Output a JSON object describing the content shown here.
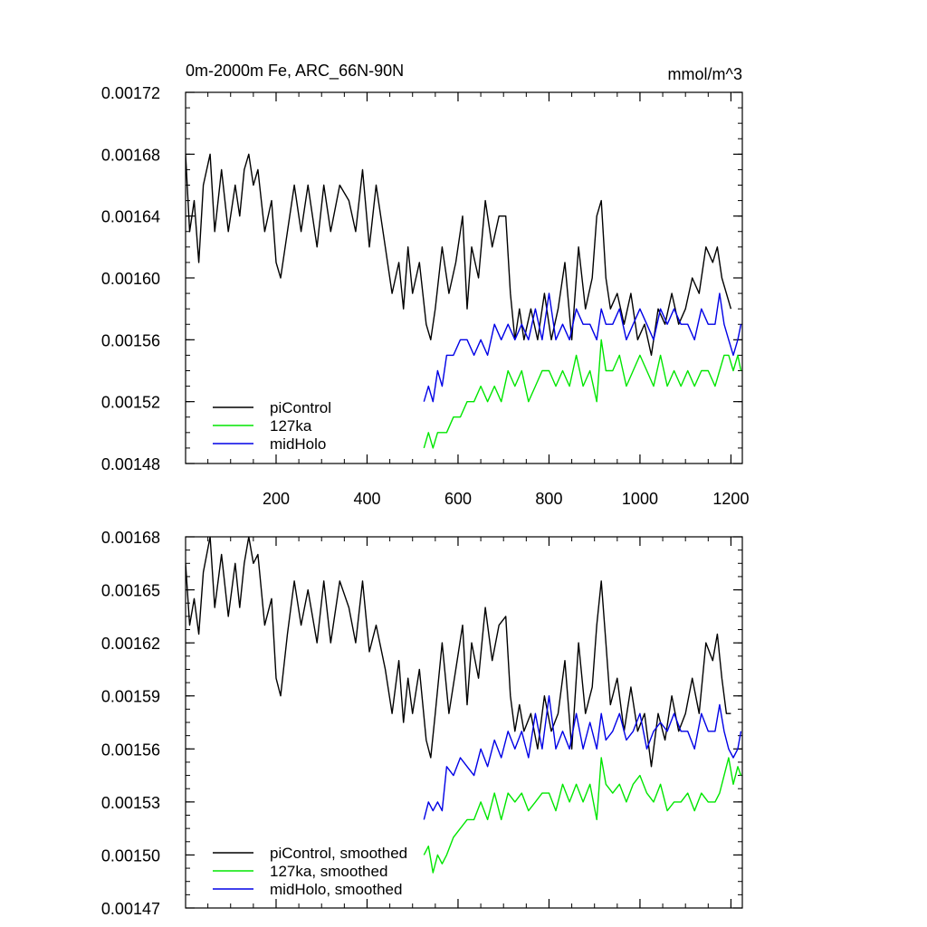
{
  "chart_data": [
    {
      "type": "line",
      "title": "0m-2000m Fe, ARC_66N-90N",
      "units": "mmol/m^3",
      "xlabel": "",
      "ylabel": "",
      "xlim": [
        1,
        1225
      ],
      "ylim": [
        0.00148,
        0.00172
      ],
      "x_ticks": [
        200,
        400,
        600,
        800,
        1000,
        1200
      ],
      "x_tick_labels": [
        "200",
        "400",
        "600",
        "800",
        "1000",
        "1200"
      ],
      "y_ticks": [
        0.00148,
        0.00152,
        0.00156,
        0.0016,
        0.00164,
        0.00168,
        0.00172
      ],
      "y_tick_labels": [
        "0.00148",
        "0.00152",
        "0.00156",
        "0.00160",
        "0.00164",
        "0.00168",
        "0.00172"
      ],
      "legend_position": "bottom-left",
      "series": [
        {
          "name": "piControl",
          "color": "#000000",
          "x": [
            1,
            10,
            20,
            30,
            40,
            55,
            65,
            80,
            95,
            110,
            120,
            130,
            140,
            150,
            160,
            175,
            190,
            200,
            210,
            225,
            240,
            255,
            270,
            290,
            305,
            320,
            340,
            360,
            375,
            390,
            405,
            420,
            440,
            455,
            470,
            480,
            490,
            500,
            515,
            530,
            540,
            550,
            565,
            580,
            595,
            610,
            620,
            630,
            645,
            660,
            675,
            690,
            705,
            715,
            725,
            735,
            745,
            760,
            775,
            790,
            805,
            820,
            835,
            850,
            865,
            880,
            895,
            905,
            915,
            925,
            935,
            950,
            965,
            980,
            995,
            1010,
            1025,
            1040,
            1055,
            1070,
            1085,
            1100,
            1115,
            1130,
            1145,
            1160,
            1170,
            1180,
            1190,
            1200
          ],
          "values": [
            0.00168,
            0.00163,
            0.00165,
            0.00161,
            0.00166,
            0.00168,
            0.00163,
            0.00167,
            0.00163,
            0.00166,
            0.00164,
            0.00167,
            0.00168,
            0.00166,
            0.00167,
            0.00163,
            0.00165,
            0.00161,
            0.0016,
            0.00163,
            0.00166,
            0.00163,
            0.00166,
            0.00162,
            0.00166,
            0.00163,
            0.00166,
            0.00165,
            0.00163,
            0.00167,
            0.00162,
            0.00166,
            0.00162,
            0.00159,
            0.00161,
            0.00158,
            0.00162,
            0.00159,
            0.00161,
            0.00157,
            0.00156,
            0.00158,
            0.00162,
            0.00159,
            0.00161,
            0.00164,
            0.00158,
            0.00162,
            0.0016,
            0.00165,
            0.00162,
            0.00164,
            0.00164,
            0.00159,
            0.00156,
            0.00158,
            0.00156,
            0.00158,
            0.00156,
            0.00159,
            0.00156,
            0.00158,
            0.00161,
            0.00156,
            0.00162,
            0.00158,
            0.0016,
            0.00164,
            0.00165,
            0.0016,
            0.00158,
            0.00159,
            0.00157,
            0.00159,
            0.00156,
            0.00157,
            0.00155,
            0.00158,
            0.00157,
            0.00159,
            0.00157,
            0.00158,
            0.0016,
            0.00159,
            0.00162,
            0.00161,
            0.00162,
            0.0016,
            0.00159,
            0.00158
          ]
        },
        {
          "name": "127ka",
          "color": "#00e600",
          "x": [
            525,
            535,
            545,
            555,
            565,
            575,
            590,
            605,
            620,
            635,
            650,
            665,
            680,
            695,
            710,
            725,
            740,
            755,
            770,
            785,
            800,
            815,
            830,
            845,
            860,
            875,
            890,
            905,
            915,
            925,
            940,
            955,
            970,
            985,
            1000,
            1015,
            1030,
            1045,
            1060,
            1075,
            1090,
            1105,
            1120,
            1135,
            1150,
            1165,
            1175,
            1185,
            1195,
            1205,
            1215,
            1222
          ],
          "values": [
            0.00149,
            0.0015,
            0.00149,
            0.0015,
            0.0015,
            0.0015,
            0.00151,
            0.00151,
            0.00152,
            0.00152,
            0.00153,
            0.00152,
            0.00153,
            0.00152,
            0.00154,
            0.00153,
            0.00154,
            0.00152,
            0.00153,
            0.00154,
            0.00154,
            0.00153,
            0.00154,
            0.00153,
            0.00155,
            0.00153,
            0.00154,
            0.00152,
            0.00156,
            0.00154,
            0.00154,
            0.00155,
            0.00153,
            0.00154,
            0.00155,
            0.00154,
            0.00153,
            0.00155,
            0.00153,
            0.00154,
            0.00153,
            0.00154,
            0.00153,
            0.00154,
            0.00154,
            0.00153,
            0.00154,
            0.00155,
            0.00155,
            0.00154,
            0.00155,
            0.00154
          ]
        },
        {
          "name": "midHolo",
          "color": "#0000e6",
          "x": [
            525,
            535,
            545,
            555,
            565,
            575,
            590,
            605,
            620,
            635,
            650,
            665,
            680,
            695,
            710,
            725,
            740,
            755,
            770,
            785,
            800,
            815,
            830,
            845,
            860,
            875,
            890,
            905,
            915,
            925,
            940,
            955,
            970,
            985,
            1000,
            1015,
            1030,
            1045,
            1060,
            1075,
            1090,
            1105,
            1120,
            1135,
            1150,
            1165,
            1175,
            1185,
            1195,
            1205,
            1215,
            1222
          ],
          "values": [
            0.00152,
            0.00153,
            0.00152,
            0.00154,
            0.00153,
            0.00155,
            0.00155,
            0.00156,
            0.00156,
            0.00155,
            0.00156,
            0.00155,
            0.00157,
            0.00156,
            0.00157,
            0.00156,
            0.00157,
            0.00156,
            0.00158,
            0.00156,
            0.00159,
            0.00156,
            0.00157,
            0.00156,
            0.00158,
            0.00157,
            0.00157,
            0.00156,
            0.00158,
            0.00157,
            0.00157,
            0.00158,
            0.00156,
            0.00157,
            0.00158,
            0.00157,
            0.00156,
            0.00158,
            0.00157,
            0.00158,
            0.00157,
            0.00157,
            0.00156,
            0.00158,
            0.00157,
            0.00157,
            0.00159,
            0.00157,
            0.00156,
            0.00155,
            0.00156,
            0.00157
          ]
        }
      ]
    },
    {
      "type": "line",
      "title": "",
      "units": "",
      "xlabel": "",
      "ylabel": "",
      "xlim": [
        1,
        1225
      ],
      "ylim": [
        0.00147,
        0.00168
      ],
      "x_ticks": [
        200,
        400,
        600,
        800,
        1000,
        1200
      ],
      "x_tick_labels": [],
      "y_ticks": [
        0.00147,
        0.0015,
        0.00153,
        0.00156,
        0.00159,
        0.00162,
        0.00165,
        0.00168
      ],
      "y_tick_labels": [
        "0.00147",
        "0.00150",
        "0.00153",
        "0.00156",
        "0.00159",
        "0.00162",
        "0.00165",
        "0.00168"
      ],
      "legend_position": "bottom-left",
      "series": [
        {
          "name": "piControl, smoothed",
          "color": "#000000",
          "x": [
            1,
            10,
            20,
            30,
            40,
            55,
            65,
            80,
            95,
            110,
            120,
            130,
            140,
            150,
            160,
            175,
            190,
            200,
            210,
            225,
            240,
            255,
            270,
            290,
            305,
            320,
            340,
            360,
            375,
            390,
            405,
            420,
            440,
            455,
            470,
            480,
            490,
            500,
            515,
            530,
            540,
            550,
            565,
            580,
            595,
            610,
            620,
            630,
            645,
            660,
            675,
            690,
            705,
            715,
            725,
            735,
            745,
            760,
            775,
            790,
            805,
            820,
            835,
            850,
            865,
            880,
            895,
            905,
            915,
            925,
            935,
            950,
            965,
            980,
            995,
            1010,
            1025,
            1040,
            1055,
            1070,
            1085,
            1100,
            1115,
            1130,
            1145,
            1160,
            1170,
            1180,
            1190,
            1200
          ],
          "values": [
            0.001665,
            0.00163,
            0.001645,
            0.001625,
            0.00166,
            0.00168,
            0.00164,
            0.00167,
            0.001635,
            0.001665,
            0.00164,
            0.001665,
            0.00168,
            0.001665,
            0.00167,
            0.00163,
            0.001645,
            0.0016,
            0.00159,
            0.001625,
            0.001655,
            0.00163,
            0.00165,
            0.00162,
            0.001655,
            0.00162,
            0.001655,
            0.00164,
            0.00162,
            0.001655,
            0.001615,
            0.00163,
            0.001605,
            0.00158,
            0.00161,
            0.001575,
            0.0016,
            0.00158,
            0.001605,
            0.001565,
            0.001555,
            0.00158,
            0.00162,
            0.00158,
            0.001605,
            0.00163,
            0.001585,
            0.00162,
            0.0016,
            0.00164,
            0.00161,
            0.00163,
            0.001635,
            0.00159,
            0.00157,
            0.001585,
            0.00157,
            0.00158,
            0.00156,
            0.00159,
            0.00157,
            0.00158,
            0.00161,
            0.00156,
            0.00162,
            0.00158,
            0.001595,
            0.00163,
            0.001655,
            0.00162,
            0.001585,
            0.0016,
            0.00157,
            0.001595,
            0.00157,
            0.00158,
            0.00155,
            0.00158,
            0.001565,
            0.00159,
            0.00157,
            0.00158,
            0.0016,
            0.00158,
            0.00162,
            0.00161,
            0.001625,
            0.0016,
            0.00158,
            0.00158
          ]
        },
        {
          "name": "127ka, smoothed",
          "color": "#00e600",
          "x": [
            525,
            535,
            545,
            555,
            565,
            575,
            590,
            605,
            620,
            635,
            650,
            665,
            680,
            695,
            710,
            725,
            740,
            755,
            770,
            785,
            800,
            815,
            830,
            845,
            860,
            875,
            890,
            905,
            915,
            925,
            940,
            955,
            970,
            985,
            1000,
            1015,
            1030,
            1045,
            1060,
            1075,
            1090,
            1105,
            1120,
            1135,
            1150,
            1165,
            1175,
            1185,
            1195,
            1205,
            1215,
            1222
          ],
          "values": [
            0.0015,
            0.001505,
            0.00149,
            0.0015,
            0.001495,
            0.0015,
            0.00151,
            0.001515,
            0.00152,
            0.00152,
            0.00153,
            0.00152,
            0.001535,
            0.00152,
            0.001535,
            0.00153,
            0.001535,
            0.001525,
            0.00153,
            0.001535,
            0.001535,
            0.001525,
            0.00154,
            0.00153,
            0.00154,
            0.00153,
            0.00154,
            0.00152,
            0.001555,
            0.00154,
            0.001535,
            0.00154,
            0.00153,
            0.00154,
            0.001545,
            0.001535,
            0.00153,
            0.00154,
            0.001525,
            0.00153,
            0.00153,
            0.001535,
            0.001525,
            0.001535,
            0.00153,
            0.00153,
            0.001535,
            0.001545,
            0.001555,
            0.00154,
            0.00155,
            0.001545
          ]
        },
        {
          "name": "midHolo, smoothed",
          "color": "#0000e6",
          "x": [
            525,
            535,
            545,
            555,
            565,
            575,
            590,
            605,
            620,
            635,
            650,
            665,
            680,
            695,
            710,
            725,
            740,
            755,
            770,
            785,
            800,
            815,
            830,
            845,
            860,
            875,
            890,
            905,
            915,
            925,
            940,
            955,
            970,
            985,
            1000,
            1015,
            1030,
            1045,
            1060,
            1075,
            1090,
            1105,
            1120,
            1135,
            1150,
            1165,
            1175,
            1185,
            1195,
            1205,
            1215,
            1222
          ],
          "values": [
            0.00152,
            0.00153,
            0.001525,
            0.00153,
            0.001525,
            0.00155,
            0.001545,
            0.001555,
            0.00155,
            0.001545,
            0.00156,
            0.00155,
            0.001565,
            0.001555,
            0.00157,
            0.00156,
            0.00157,
            0.001555,
            0.00158,
            0.00156,
            0.00159,
            0.00156,
            0.00157,
            0.00156,
            0.00158,
            0.00156,
            0.001575,
            0.00156,
            0.00158,
            0.001565,
            0.00157,
            0.00158,
            0.001565,
            0.00157,
            0.00158,
            0.00156,
            0.00157,
            0.001575,
            0.00157,
            0.00158,
            0.00157,
            0.00157,
            0.00156,
            0.00158,
            0.00157,
            0.00157,
            0.001585,
            0.00157,
            0.00156,
            0.001555,
            0.00156,
            0.00157
          ]
        }
      ]
    }
  ]
}
